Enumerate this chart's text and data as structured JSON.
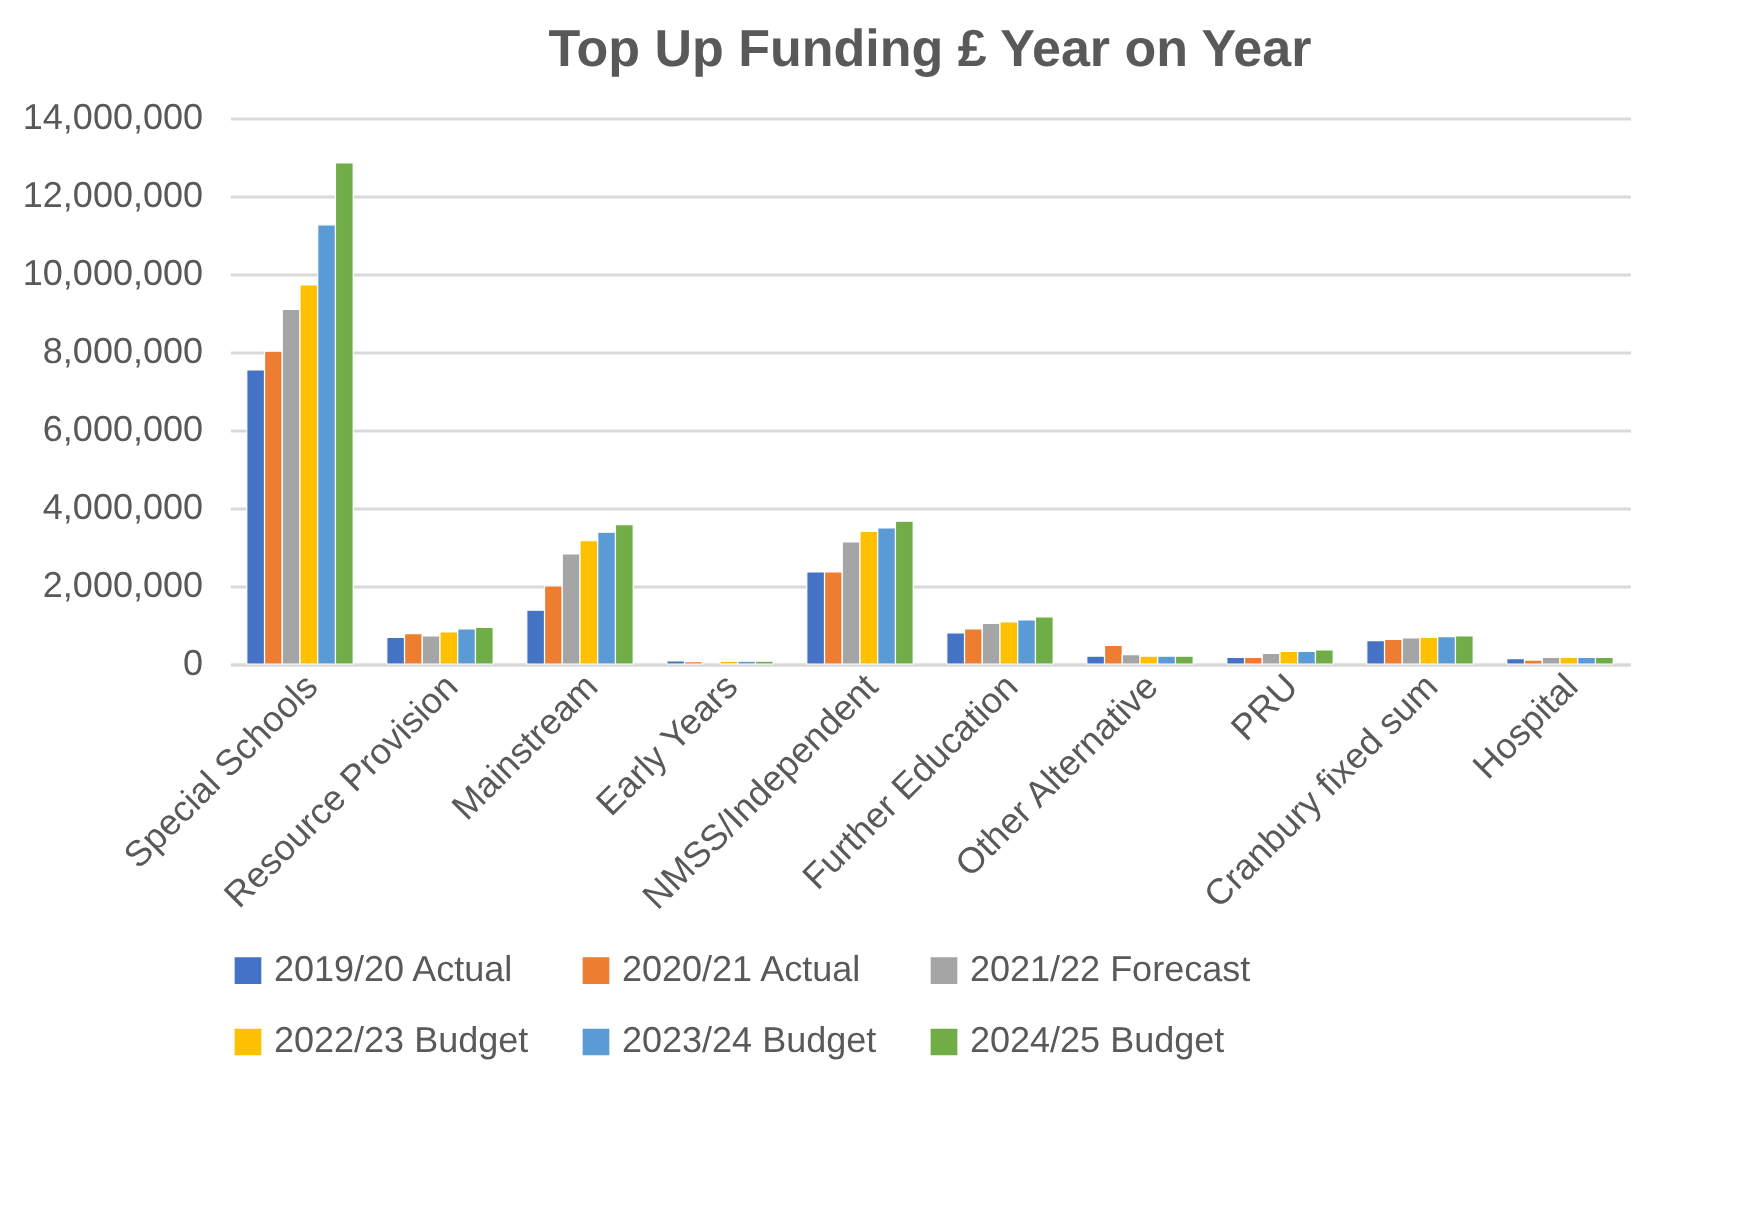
{
  "chart_data": {
    "type": "bar",
    "title": "Top Up Funding £ Year on Year",
    "categories": [
      "Special Schools",
      "Resource Provision",
      "Mainstream",
      "Early Years",
      "NMSS/Independent",
      "Further Education",
      "Other Alternative",
      "PRU",
      "Cranbury fixed sum",
      "Hospital"
    ],
    "series": [
      {
        "name": "2019/20 Actual",
        "color": "#4472c4",
        "values": [
          7540000,
          680000,
          1380000,
          80000,
          2360000,
          800000,
          200000,
          170000,
          600000,
          140000
        ]
      },
      {
        "name": "2020/21 Actual",
        "color": "#ed7d31",
        "values": [
          8020000,
          780000,
          2000000,
          60000,
          2360000,
          900000,
          480000,
          170000,
          630000,
          100000
        ]
      },
      {
        "name": "2021/22 Forecast",
        "color": "#a5a5a5",
        "values": [
          9090000,
          720000,
          2820000,
          null,
          3130000,
          1040000,
          240000,
          270000,
          670000,
          170000
        ]
      },
      {
        "name": "2022/23 Budget",
        "color": "#ffc000",
        "values": [
          9720000,
          820000,
          3160000,
          70000,
          3400000,
          1080000,
          200000,
          320000,
          680000,
          170000
        ]
      },
      {
        "name": "2023/24 Budget",
        "color": "#5b9bd5",
        "values": [
          11260000,
          900000,
          3380000,
          70000,
          3490000,
          1130000,
          200000,
          320000,
          700000,
          170000
        ]
      },
      {
        "name": "2024/25 Budget",
        "color": "#70ad47",
        "values": [
          12850000,
          940000,
          3570000,
          70000,
          3660000,
          1210000,
          200000,
          360000,
          720000,
          170000
        ]
      }
    ],
    "ylim": [
      0,
      14000000
    ],
    "yticks": [
      0,
      {
        "value": 2000000,
        "label": "2,000,000"
      },
      {
        "value": 4000000,
        "label": "4,000,000"
      },
      {
        "value": 6000000,
        "label": "6,000,000"
      },
      {
        "value": 8000000,
        "label": "8,000,000"
      },
      {
        "value": 10000000,
        "label": "10,000,000"
      },
      {
        "value": 12000000,
        "label": "12,000,000"
      },
      {
        "value": 14000000,
        "label": "14,000,000"
      }
    ],
    "grid": "y",
    "legend": "bottom"
  }
}
